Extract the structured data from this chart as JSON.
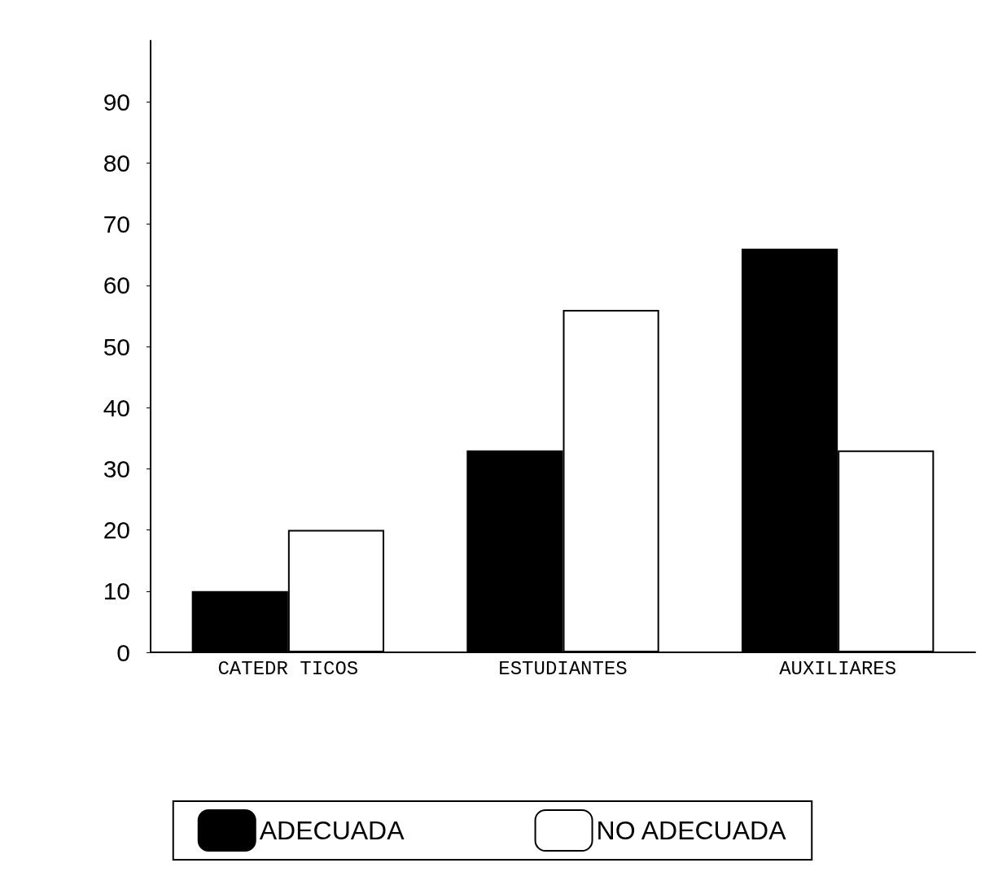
{
  "chart_data": {
    "type": "bar",
    "categories": [
      "CATEDR TICOS",
      "ESTUDIANTES",
      "AUXILIARES"
    ],
    "series": [
      {
        "name": "ADECUADA",
        "color": "#000000",
        "values": [
          10,
          33,
          66
        ]
      },
      {
        "name": "NO ADECUADA",
        "color": "#ffffff",
        "values": [
          20,
          56,
          33
        ]
      }
    ],
    "ylim": [
      0,
      100
    ],
    "yticks": [
      0,
      10,
      20,
      30,
      40,
      50,
      60,
      70,
      80,
      90
    ],
    "grid": false,
    "legend": "bottom"
  }
}
